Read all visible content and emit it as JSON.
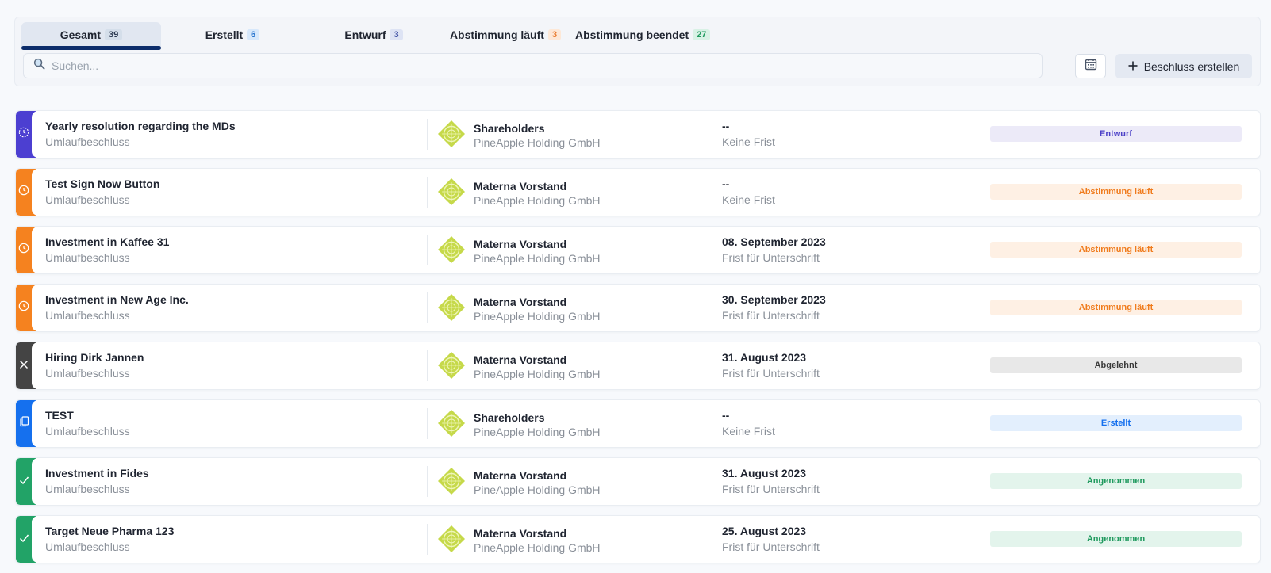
{
  "tabs": [
    {
      "label": "Gesamt",
      "count": "39"
    },
    {
      "label": "Erstellt",
      "count": "6"
    },
    {
      "label": "Entwurf",
      "count": "3"
    },
    {
      "label": "Abstimmung läuft",
      "count": "3"
    },
    {
      "label": "Abstimmung beendet",
      "count": "27"
    }
  ],
  "search": {
    "placeholder": "Suchen..."
  },
  "create_button": {
    "label": "Beschluss erstellen"
  },
  "rows": [
    {
      "title": "Yearly resolution regarding the MDs",
      "type": "Umlaufbeschluss",
      "body": "Shareholders",
      "company": "PineApple Holding GmbH",
      "date": "--",
      "deadline": "Keine Frist",
      "status": "Entwurf",
      "status_color": "#4a3fc7",
      "icon": "draft-clock-icon"
    },
    {
      "title": "Test Sign Now Button",
      "type": "Umlaufbeschluss",
      "body": "Materna Vorstand",
      "company": "PineApple Holding GmbH",
      "date": "--",
      "deadline": "Keine Frist",
      "status": "Abstimmung läuft",
      "status_color": "#f07b1c",
      "icon": "clock-icon"
    },
    {
      "title": "Investment in Kaffee 31",
      "type": "Umlaufbeschluss",
      "body": "Materna Vorstand",
      "company": "PineApple Holding GmbH",
      "date": "08. September 2023",
      "deadline": "Frist für Unterschrift",
      "status": "Abstimmung läuft",
      "status_color": "#f07b1c",
      "icon": "clock-icon"
    },
    {
      "title": "Investment in New Age Inc.",
      "type": "Umlaufbeschluss",
      "body": "Materna Vorstand",
      "company": "PineApple Holding GmbH",
      "date": "30. September 2023",
      "deadline": "Frist für Unterschrift",
      "status": "Abstimmung läuft",
      "status_color": "#f07b1c",
      "icon": "clock-icon"
    },
    {
      "title": "Hiring Dirk Jannen",
      "type": "Umlaufbeschluss",
      "body": "Materna Vorstand",
      "company": "PineApple Holding GmbH",
      "date": "31. August 2023",
      "deadline": "Frist für Unterschrift",
      "status": "Abgelehnt",
      "status_color": "#3a3a3a",
      "icon": "close-icon"
    },
    {
      "title": "TEST",
      "type": "Umlaufbeschluss",
      "body": "Shareholders",
      "company": "PineApple Holding GmbH",
      "date": "--",
      "deadline": "Keine Frist",
      "status": "Erstellt",
      "status_color": "#1570ee",
      "icon": "copy-icon"
    },
    {
      "title": "Investment in Fides",
      "type": "Umlaufbeschluss",
      "body": "Materna Vorstand",
      "company": "PineApple Holding GmbH",
      "date": "31. August 2023",
      "deadline": "Frist für Unterschrift",
      "status": "Angenommen",
      "status_color": "#1f9a5e",
      "icon": "check-icon"
    },
    {
      "title": "Target Neue Pharma 123",
      "type": "Umlaufbeschluss",
      "body": "Materna Vorstand",
      "company": "PineApple Holding GmbH",
      "date": "25. August 2023",
      "deadline": "Frist für Unterschrift",
      "status": "Angenommen",
      "status_color": "#1f9a5e",
      "icon": "check-icon"
    }
  ]
}
